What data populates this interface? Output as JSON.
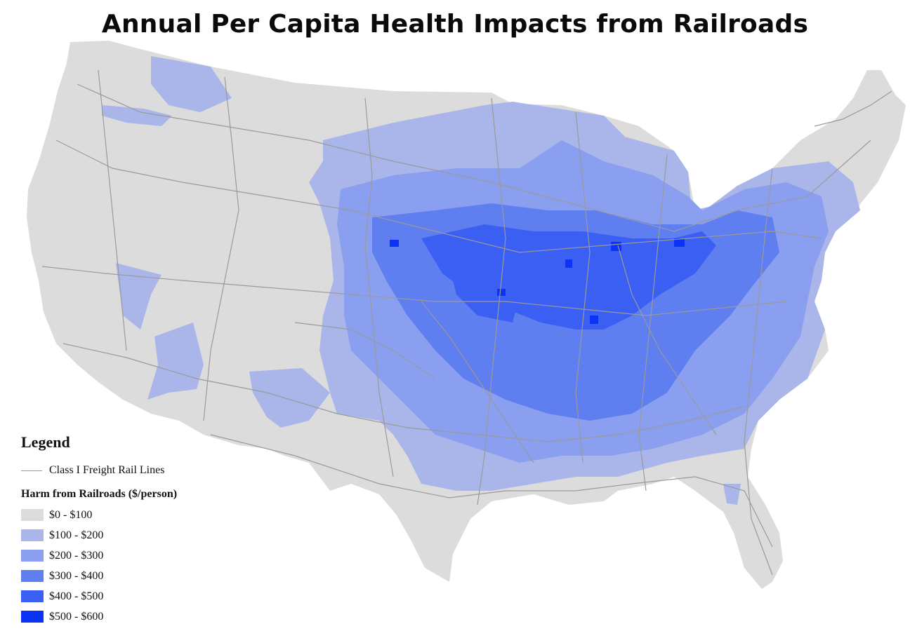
{
  "title": "Annual Per Capita Health Impacts from Railroads",
  "legend": {
    "heading": "Legend",
    "rail_label": "Class I Freight Rail Lines",
    "rail_color": "#9a9a9a",
    "harm_heading": "Harm from Railroads ($/person)",
    "bins": [
      {
        "label": "$0 - $100",
        "color": "#dcdcdc"
      },
      {
        "label": "$100 - $200",
        "color": "#aab6ea"
      },
      {
        "label": "$200 - $300",
        "color": "#8a9ff0"
      },
      {
        "label": "$300 - $400",
        "color": "#5f7ef0"
      },
      {
        "label": "$400 - $500",
        "color": "#3a5ff2"
      },
      {
        "label": "$500 - $600",
        "color": "#0a33f5"
      }
    ]
  }
}
